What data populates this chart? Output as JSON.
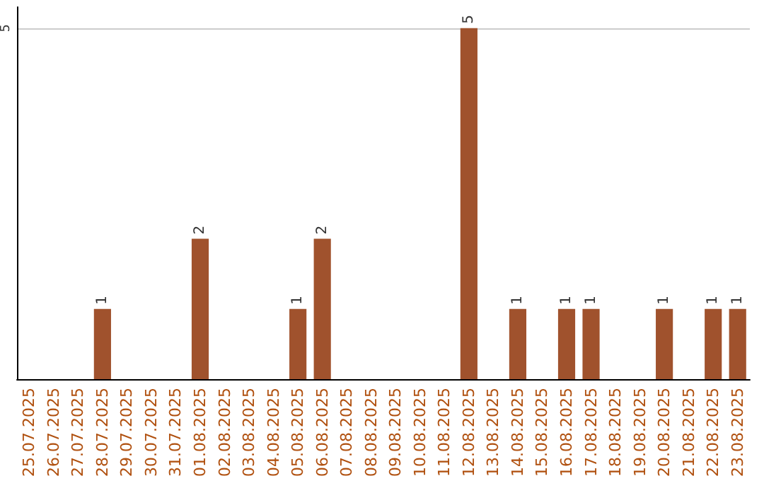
{
  "chart_data": {
    "type": "bar",
    "categories": [
      "25.07.2025",
      "26.07.2025",
      "27.07.2025",
      "28.07.2025",
      "29.07.2025",
      "30.07.2025",
      "31.07.2025",
      "01.08.2025",
      "02.08.2025",
      "03.08.2025",
      "04.08.2025",
      "05.08.2025",
      "06.08.2025",
      "07.08.2025",
      "08.08.2025",
      "09.08.2025",
      "10.08.2025",
      "11.08.2025",
      "12.08.2025",
      "13.08.2025",
      "14.08.2025",
      "15.08.2025",
      "16.08.2025",
      "17.08.2025",
      "18.08.2025",
      "19.08.2025",
      "20.08.2025",
      "21.08.2025",
      "22.08.2025",
      "23.08.2025"
    ],
    "values": [
      0,
      0,
      0,
      1,
      0,
      0,
      0,
      2,
      0,
      0,
      0,
      1,
      2,
      0,
      0,
      0,
      0,
      0,
      5,
      0,
      1,
      0,
      1,
      1,
      0,
      0,
      1,
      0,
      1,
      1
    ],
    "value_labels": [
      null,
      null,
      null,
      "1",
      null,
      null,
      null,
      "2",
      null,
      null,
      null,
      "1",
      "2",
      null,
      null,
      null,
      null,
      null,
      "5",
      null,
      "1",
      null,
      "1",
      "1",
      null,
      null,
      "1",
      null,
      "1",
      "1"
    ],
    "color": "#a0522d",
    "ylim": [
      0,
      5.3
    ],
    "yticks": [
      5
    ],
    "grid": "y"
  }
}
